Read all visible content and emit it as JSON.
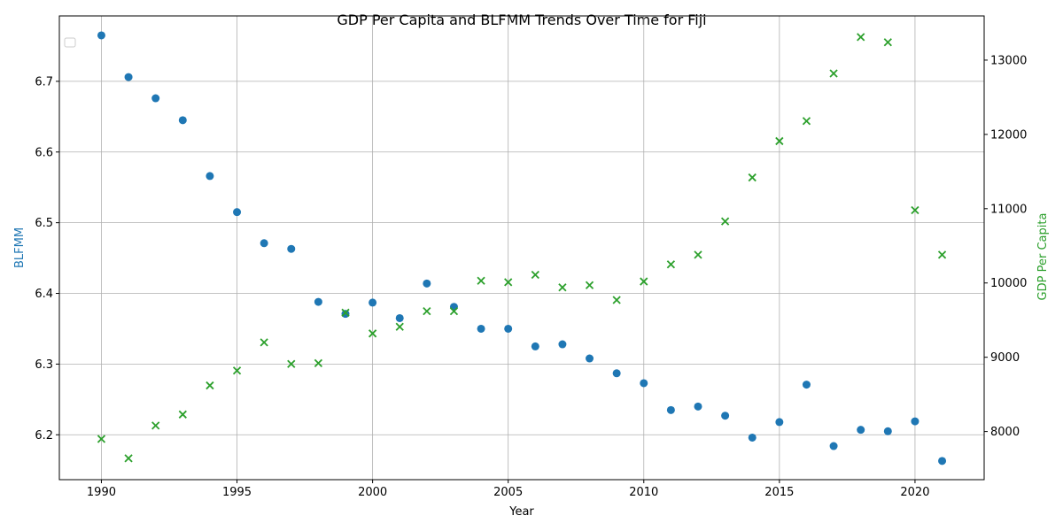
{
  "chart_data": {
    "type": "scatter",
    "title": "GDP Per Capita and BLFMM Trends Over Time for Fiji",
    "xlabel": "Year",
    "ylabel_left": "BLFMM",
    "ylabel_right": "GDP Per Capita",
    "xlim": [
      1988.45,
      2022.55
    ],
    "ylim_left": [
      6.1365,
      6.7925
    ],
    "ylim_right": [
      7352,
      13595
    ],
    "x_ticks": [
      1990,
      1995,
      2000,
      2005,
      2010,
      2015,
      2020
    ],
    "y_left_ticks": [
      6.2,
      6.3,
      6.4,
      6.5,
      6.6,
      6.7
    ],
    "y_right_ticks": [
      8000,
      9000,
      10000,
      11000,
      12000,
      13000
    ],
    "grid": true,
    "legend": "top-left (empty)",
    "colors": {
      "blfmm": "#1f77b4",
      "gdp": "#2ca02c"
    },
    "series": [
      {
        "name": "BLFMM",
        "axis": "left",
        "marker": "circle",
        "x": [
          1990,
          1991,
          1992,
          1993,
          1994,
          1995,
          1996,
          1997,
          1998,
          1999,
          2000,
          2001,
          2002,
          2003,
          2004,
          2005,
          2006,
          2007,
          2008,
          2009,
          2010,
          2011,
          2012,
          2013,
          2014,
          2015,
          2016,
          2017,
          2018,
          2019,
          2020,
          2021
        ],
        "y": [
          6.765,
          6.706,
          6.676,
          6.645,
          6.566,
          6.515,
          6.471,
          6.463,
          6.388,
          6.371,
          6.387,
          6.365,
          6.414,
          6.381,
          6.35,
          6.35,
          6.325,
          6.328,
          6.308,
          6.287,
          6.273,
          6.235,
          6.24,
          6.227,
          6.196,
          6.218,
          6.271,
          6.184,
          6.207,
          6.205,
          6.219,
          6.163
        ]
      },
      {
        "name": "GDP Per Capita",
        "axis": "right",
        "marker": "x",
        "x": [
          1990,
          1991,
          1992,
          1993,
          1994,
          1995,
          1996,
          1997,
          1998,
          1999,
          2000,
          2001,
          2002,
          2003,
          2004,
          2005,
          2006,
          2007,
          2008,
          2009,
          2010,
          2011,
          2012,
          2013,
          2014,
          2015,
          2016,
          2017,
          2018,
          2019,
          2020,
          2021
        ],
        "y": [
          7900,
          7640,
          8080,
          8230,
          8620,
          8820,
          9200,
          8910,
          8920,
          9600,
          9320,
          9410,
          9620,
          9620,
          10030,
          10010,
          10110,
          9940,
          9970,
          9770,
          10020,
          10250,
          10380,
          10830,
          11420,
          11910,
          12180,
          12820,
          13310,
          13240,
          10980,
          10380
        ]
      }
    ]
  }
}
